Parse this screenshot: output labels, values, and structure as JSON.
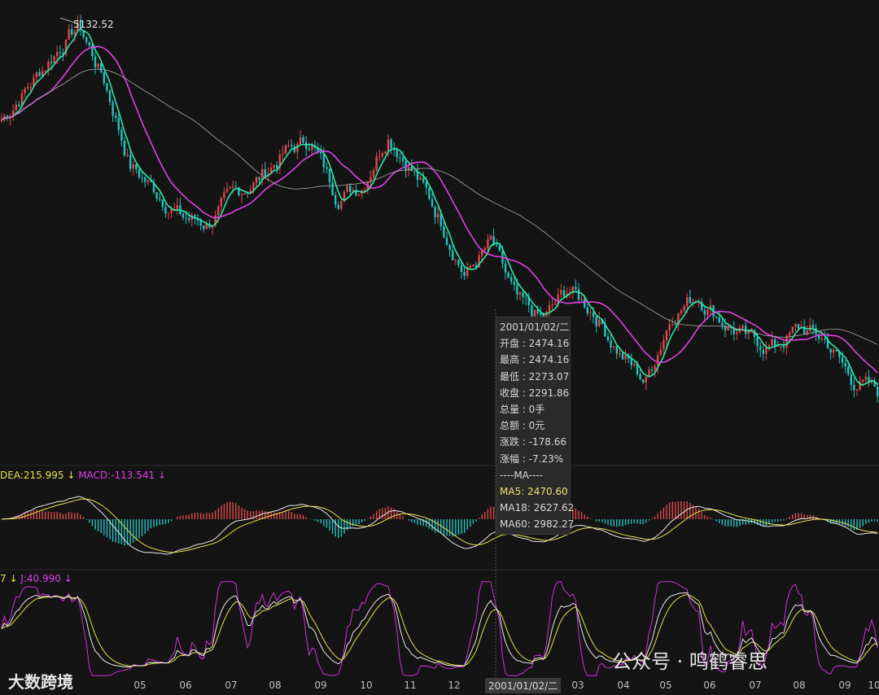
{
  "chart_data": {
    "type": "candlestick",
    "price_panel": {
      "peak_label": "5132.52",
      "series": [
        {
          "name": "MA5",
          "color": "#2ee8a8"
        },
        {
          "name": "MA18",
          "color": "#e040e8"
        },
        {
          "name": "MA60",
          "color": "#a8a8a8"
        }
      ],
      "close_trend": [
        4400,
        4650,
        4900,
        5132.52,
        4700,
        4050,
        3850,
        3650,
        3600,
        3820,
        3950,
        4150,
        4250,
        3820,
        3900,
        4300,
        4000,
        3650,
        3200,
        3450,
        3000,
        2850,
        3100,
        2920,
        2600,
        2380,
        2900,
        3050,
        2850,
        2700,
        2650,
        2800,
        2700,
        2400,
        2300
      ]
    },
    "macd_panel": {
      "labels": {
        "dea": "DEA:215.995",
        "macd": "MACD:-113.541"
      }
    },
    "kdj_panel": {
      "labels": {
        "d_suffix": "7",
        "j": "J:40.990"
      }
    },
    "x_ticks": [
      "05",
      "06",
      "07",
      "08",
      "09",
      "10",
      "11",
      "12",
      "03",
      "04",
      "05",
      "06",
      "07",
      "08",
      "09",
      "10"
    ],
    "cursor_date": "2001/01/02/二"
  },
  "tooltip": {
    "date": "2001/01/02/二",
    "open": "开盘 : 2474.16",
    "high": "最高 : 2474.16",
    "low": "最低 : 2273.07",
    "close": "收盘 : 2291.86",
    "volume": "总量 : 0手",
    "amount": "总额 : 0元",
    "change": "涨跌 : -178.66",
    "pct": "涨幅 : -7.23%",
    "ma_header": "----MA----",
    "ma5": "MA5: 2470.60",
    "ma18": "MA18: 2627.62",
    "ma60": "MA60: 2982.27"
  },
  "watermarks": {
    "left": "大数跨境",
    "right": "公众号 · 鸣鹤睿思"
  }
}
